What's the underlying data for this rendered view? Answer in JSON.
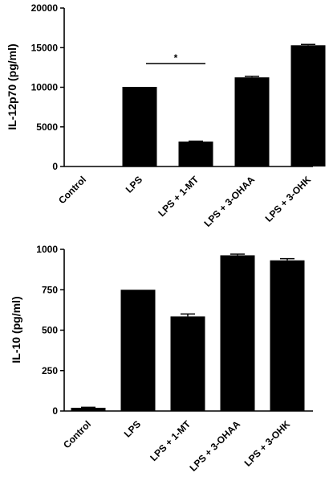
{
  "colors": {
    "bar": "#000000",
    "axis": "#000000",
    "background": "#ffffff"
  },
  "chart_data": [
    {
      "type": "bar",
      "title": "",
      "xlabel": "",
      "ylabel": "IL-12p70 (pg/ml)",
      "ylim": [
        0,
        20000
      ],
      "yticks": [
        0,
        5000,
        10000,
        15000,
        20000
      ],
      "ytick_labels": [
        "0",
        "5000",
        "10000",
        "15000",
        "20000"
      ],
      "categories": [
        "Control",
        "LPS",
        "LPS + 1-MT",
        "LPS + 3-OHAA",
        "LPS + 3-OHK"
      ],
      "values": [
        0,
        10050,
        3150,
        11250,
        15300
      ],
      "errors": [
        0,
        0,
        50,
        120,
        100
      ],
      "grid": false,
      "annotations": [
        {
          "text": "*",
          "between": [
            "LPS",
            "LPS + 1-MT"
          ],
          "y": 13000
        }
      ]
    },
    {
      "type": "bar",
      "title": "",
      "xlabel": "",
      "ylabel": "IL-10 (pg/ml)",
      "ylim": [
        0,
        1000
      ],
      "yticks": [
        0,
        250,
        500,
        750,
        1000
      ],
      "ytick_labels": [
        "0",
        "250",
        "500",
        "750",
        "1000"
      ],
      "categories": [
        "Control",
        "LPS",
        "LPS + 1-MT",
        "LPS + 3-OHAA",
        "LPS + 3-OHK"
      ],
      "values": [
        20,
        750,
        585,
        963,
        932
      ],
      "errors": [
        3,
        0,
        15,
        7,
        10
      ],
      "grid": false,
      "annotations": []
    }
  ]
}
